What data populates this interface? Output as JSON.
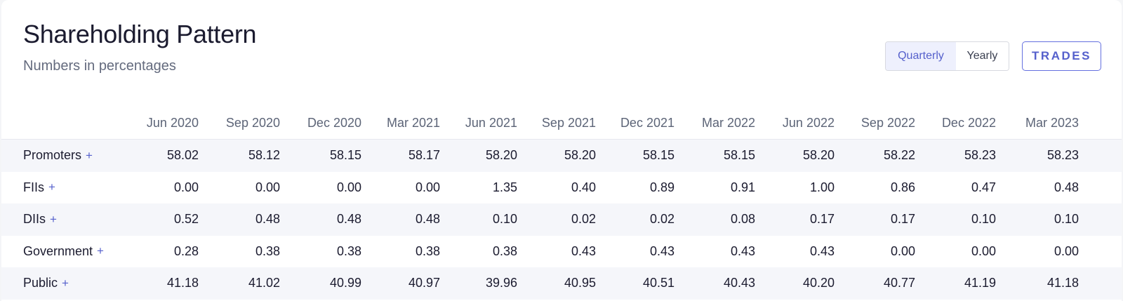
{
  "header": {
    "title": "Shareholding Pattern",
    "subtitle": "Numbers in percentages"
  },
  "toggle": {
    "options": [
      {
        "label": "Quarterly",
        "active": true
      },
      {
        "label": "Yearly",
        "active": false
      }
    ]
  },
  "trades_label": "TRADES",
  "colors": {
    "accent": "#5560cc",
    "alt_row": "#f5f6fa"
  },
  "table": {
    "columns": [
      "Jun 2020",
      "Sep 2020",
      "Dec 2020",
      "Mar 2021",
      "Jun 2021",
      "Sep 2021",
      "Dec 2021",
      "Mar 2022",
      "Jun 2022",
      "Sep 2022",
      "Dec 2022",
      "Mar 2023"
    ],
    "expand_symbol": "+",
    "rows": [
      {
        "label": "Promoters",
        "values": [
          "58.02",
          "58.12",
          "58.15",
          "58.17",
          "58.20",
          "58.20",
          "58.15",
          "58.15",
          "58.20",
          "58.22",
          "58.23",
          "58.23"
        ]
      },
      {
        "label": "FIIs",
        "values": [
          "0.00",
          "0.00",
          "0.00",
          "0.00",
          "1.35",
          "0.40",
          "0.89",
          "0.91",
          "1.00",
          "0.86",
          "0.47",
          "0.48"
        ]
      },
      {
        "label": "DIIs",
        "values": [
          "0.52",
          "0.48",
          "0.48",
          "0.48",
          "0.10",
          "0.02",
          "0.02",
          "0.08",
          "0.17",
          "0.17",
          "0.10",
          "0.10"
        ]
      },
      {
        "label": "Government",
        "values": [
          "0.28",
          "0.38",
          "0.38",
          "0.38",
          "0.38",
          "0.43",
          "0.43",
          "0.43",
          "0.43",
          "0.00",
          "0.00",
          "0.00"
        ]
      },
      {
        "label": "Public",
        "values": [
          "41.18",
          "41.02",
          "40.99",
          "40.97",
          "39.96",
          "40.95",
          "40.51",
          "40.43",
          "40.20",
          "40.77",
          "41.19",
          "41.18"
        ]
      }
    ]
  }
}
